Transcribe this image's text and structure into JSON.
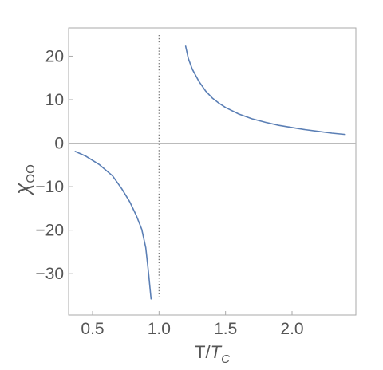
{
  "chart_data": {
    "type": "line",
    "xlabel": {
      "main": "T/",
      "var": "T",
      "sub": "C"
    },
    "ylabel": {
      "main": "χ",
      "sub": "OO"
    },
    "xlim": [
      0.32,
      2.48
    ],
    "ylim": [
      -39.5,
      26.5
    ],
    "xticks": [
      0.5,
      1.0,
      1.5,
      2.0
    ],
    "xtick_labels": [
      "0.5",
      "1.0",
      "1.5",
      "2.0"
    ],
    "yticks": [
      20,
      10,
      0,
      -10,
      -20,
      -30
    ],
    "ytick_labels": [
      "20",
      "10",
      "0",
      "−10",
      "−20",
      "−30"
    ],
    "zero_line": true,
    "vertical_dotted_line_x": 1.0,
    "colors": {
      "line": "#5b7fb5",
      "frame": "#aaaaaa",
      "text": "#555555",
      "zero": "#bbbbbb",
      "dotted": "#777777"
    },
    "series": [
      {
        "segment": "below Tc",
        "x": [
          0.37,
          0.45,
          0.55,
          0.65,
          0.72,
          0.78,
          0.83,
          0.87,
          0.9,
          0.92,
          0.94
        ],
        "y": [
          -1.9,
          -3.0,
          -4.9,
          -7.5,
          -10.5,
          -13.5,
          -16.7,
          -19.8,
          -24.0,
          -29.5,
          -35.8
        ]
      },
      {
        "segment": "above Tc",
        "x": [
          1.2,
          1.22,
          1.25,
          1.3,
          1.35,
          1.4,
          1.45,
          1.5,
          1.6,
          1.7,
          1.8,
          1.9,
          2.0,
          2.1,
          2.2,
          2.3,
          2.4
        ],
        "y": [
          22.3,
          19.5,
          17.0,
          14.2,
          12.0,
          10.4,
          9.2,
          8.2,
          6.7,
          5.6,
          4.8,
          4.1,
          3.6,
          3.1,
          2.7,
          2.3,
          2.0
        ]
      }
    ]
  }
}
